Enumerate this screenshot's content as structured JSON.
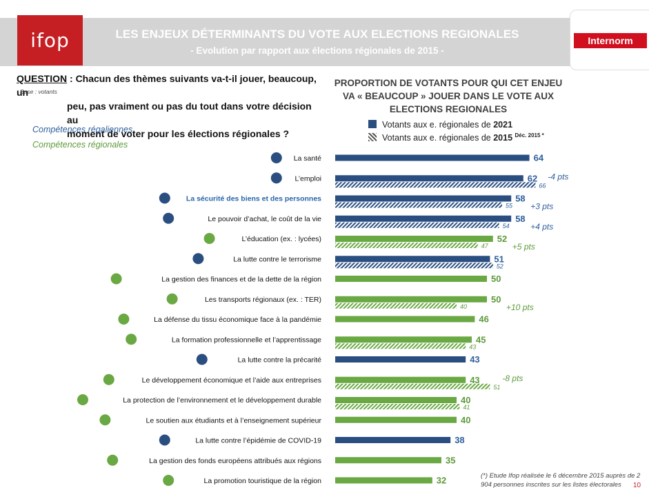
{
  "header": {
    "logo": "ifop",
    "title": "LES ENJEUX DÉTERMINANTS DU VOTE AUX ELECTIONS REGIONALES",
    "subtitle": "- Evolution par rapport aux élections régionales de 2015  -",
    "client_logo": "Internorm"
  },
  "question": {
    "lead": "QUESTION",
    "text_line1": " : Chacun des thèmes suivants va-t-il jouer, beaucoup, un",
    "text_line2": "peu, pas vraiment ou pas du tout dans votre décision au",
    "text_line3": "moment de voter pour les élections régionales ?",
    "base": "Base : votants"
  },
  "categories_legend": {
    "regaliennes": "Compétences régaliennes",
    "regionales": "Compétences régionales"
  },
  "colors": {
    "regalienne": "#2a4e80",
    "regionale": "#6aa843",
    "regalienne_text": "#2e5f9c",
    "regionale_text": "#5c9a3a",
    "brand_red": "#c51f24"
  },
  "chart_data": {
    "type": "bar",
    "title": "PROPORTION DE VOTANTS POUR QUI CET ENJEU VA « BEAUCOUP » JOUER DANS LE VOTE AUX ELECTIONS REGIONALES",
    "title_lines": [
      "PROPORTION DE VOTANTS POUR QUI CET ENJEU",
      "VA « BEAUCOUP » JOUER DANS LE VOTE AUX",
      "ELECTIONS REGIONALES"
    ],
    "legend": [
      {
        "label": "Votants aux e. régionales de ",
        "year": "2021",
        "note": "",
        "pattern": "solid"
      },
      {
        "label": "Votants aux e. régionales de ",
        "year": "2015",
        "note": "Déc. 2015 *",
        "pattern": "hatched"
      }
    ],
    "series": [
      {
        "name": "Votants aux e. régionales de 2021"
      },
      {
        "name": "Votants aux e. régionales de 2015"
      }
    ],
    "items": [
      {
        "label": "La santé",
        "cat": "regalienne",
        "icon": "doctor-icon",
        "v2021": 64,
        "v2015": null,
        "delta": ""
      },
      {
        "label": "L’emploi",
        "cat": "regalienne",
        "icon": "workers-icon",
        "v2021": 62,
        "v2015": 66,
        "delta": "-4 pts"
      },
      {
        "label": "La sécurité des biens et des personnes",
        "cat": "regalienne",
        "icon": "police-icon",
        "v2021": 58,
        "v2015": 55,
        "delta": "+3 pts",
        "highlight": true
      },
      {
        "label": "Le pouvoir d’achat, le coût de la vie",
        "cat": "regalienne",
        "icon": "shopping-cart-icon",
        "v2021": 58,
        "v2015": 54,
        "delta": "+4 pts"
      },
      {
        "label": "L’éducation (ex. : lycées)",
        "cat": "regionale",
        "icon": "school-icon",
        "v2021": 52,
        "v2015": 47,
        "delta": "+5 pts"
      },
      {
        "label": "La lutte contre le terrorisme",
        "cat": "regalienne",
        "icon": "soldier-icon",
        "v2021": 51,
        "v2015": 52,
        "delta": ""
      },
      {
        "label": "La gestion des finances et de la dette de la région",
        "cat": "regionale",
        "icon": "money-bag-icon",
        "v2021": 50,
        "v2015": null,
        "delta": ""
      },
      {
        "label": "Les transports régionaux (ex. : TER)",
        "cat": "regionale",
        "icon": "train-icon",
        "v2021": 50,
        "v2015": 40,
        "delta": "+10 pts"
      },
      {
        "label": "La défense du tissu économique face à la pandémie",
        "cat": "regionale",
        "icon": "business-virus-icon",
        "v2021": 46,
        "v2015": null,
        "delta": ""
      },
      {
        "label": "La formation professionnelle et l’apprentissage",
        "cat": "regionale",
        "icon": "training-icon",
        "v2021": 45,
        "v2015": 43,
        "delta": ""
      },
      {
        "label": "La lutte contre la précarité",
        "cat": "regalienne",
        "icon": "help-person-icon",
        "v2021": 43,
        "v2015": null,
        "delta": ""
      },
      {
        "label": "Le développement économique et l’aide aux entreprises",
        "cat": "regionale",
        "icon": "shop-icon",
        "v2021": 43,
        "v2015": 51,
        "delta": "-8 pts"
      },
      {
        "label": "La protection de l’environnement et le développement durable",
        "cat": "regionale",
        "icon": "recycle-icon",
        "v2021": 40,
        "v2015": 41,
        "delta": ""
      },
      {
        "label": "Le soutien aux étudiants et à l’enseignement supérieur",
        "cat": "regionale",
        "icon": "university-icon",
        "v2021": 40,
        "v2015": null,
        "delta": ""
      },
      {
        "label": "La lutte contre l’épidémie de COVID-19",
        "cat": "regalienne",
        "icon": "virus-icon",
        "v2021": 38,
        "v2015": null,
        "delta": ""
      },
      {
        "label": "La gestion des fonds européens attribués aux régions",
        "cat": "regionale",
        "icon": "euro-bag-icon",
        "v2021": 35,
        "v2015": null,
        "delta": ""
      },
      {
        "label": "La promotion touristique de la région",
        "cat": "regionale",
        "icon": "tourist-icon",
        "v2021": 32,
        "v2015": null,
        "delta": ""
      }
    ]
  },
  "footnote": "(*) Etude Ifop réalisée le 6 décembre 2015 auprès de 2 904 personnes inscrites sur les listes électorales",
  "page_number": "10"
}
